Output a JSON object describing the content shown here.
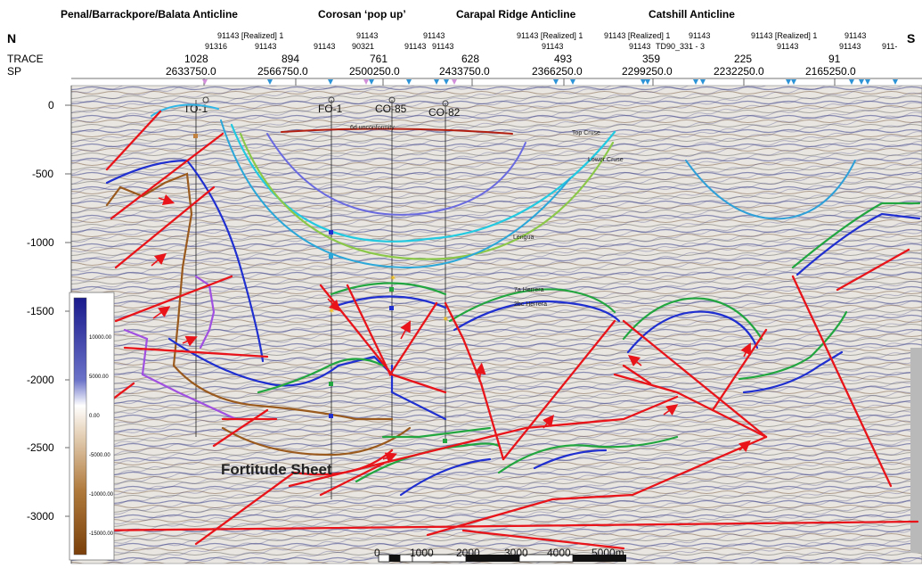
{
  "header": {
    "structures": [
      "Penal/Barrackpore/Balata  Anticline",
      "Corosan ‘pop up’",
      "Carapal  Ridge Anticline",
      "Catshill  Anticline"
    ],
    "compass_left": "N",
    "compass_right": "S",
    "row_labels": [
      "TRACE",
      "SP"
    ],
    "trace_values": [
      "1028",
      "894",
      "761",
      "628",
      "493",
      "359",
      "225",
      "91"
    ],
    "sp_values": [
      "2633750.0",
      "2566750.0",
      "2500250.0",
      "2433750.0",
      "2366250.0",
      "2299250.0",
      "2232250.0",
      "2165250.0"
    ],
    "line_refs": [
      "91143 [Realized] 1",
      "91316",
      "91143",
      "91143",
      "91143",
      "90321",
      "91143",
      "91143",
      "91143",
      "91143",
      "91143 [Realized] 1",
      "91143",
      "91143 [Realized] 1",
      "91143",
      "91143",
      "TD90_331 - 3",
      "91143 [Realized] 1",
      "91143",
      "91143",
      "91143",
      "911-"
    ]
  },
  "depth_axis": {
    "ticks": [
      "0",
      "-500",
      "-1000",
      "-1500",
      "-2000",
      "-2500",
      "-3000"
    ],
    "range": [
      0,
      -3300
    ]
  },
  "wells": [
    "TO-1",
    "FO-1",
    "CO-85",
    "CO-82"
  ],
  "horizons": [
    "6d unconformity",
    "Top Cruse",
    "Lower Cruse",
    "Lengua",
    "7a Herrera",
    "2bc Herrera"
  ],
  "sheet_label": "Fortitude Sheet",
  "colorbar": {
    "ticks": [
      "10000.00",
      "5000.00",
      "0.00",
      "-5000.00",
      "-10000.00",
      "-15000.00"
    ],
    "colors": [
      "#1a1a8c",
      "#ffffff",
      "#8a4a10"
    ]
  },
  "scale_bar": {
    "labels": [
      "0",
      "1000",
      "2000",
      "3000",
      "4000",
      "5000m"
    ]
  },
  "colors": {
    "fault": "#e8141a",
    "blue_horizon": "#1f2fd0",
    "green_horizon": "#22a640",
    "brown_horizon": "#9a5a1e",
    "cyan_horizon": "#2fb6e6",
    "purple_horizon": "#a050e0"
  }
}
